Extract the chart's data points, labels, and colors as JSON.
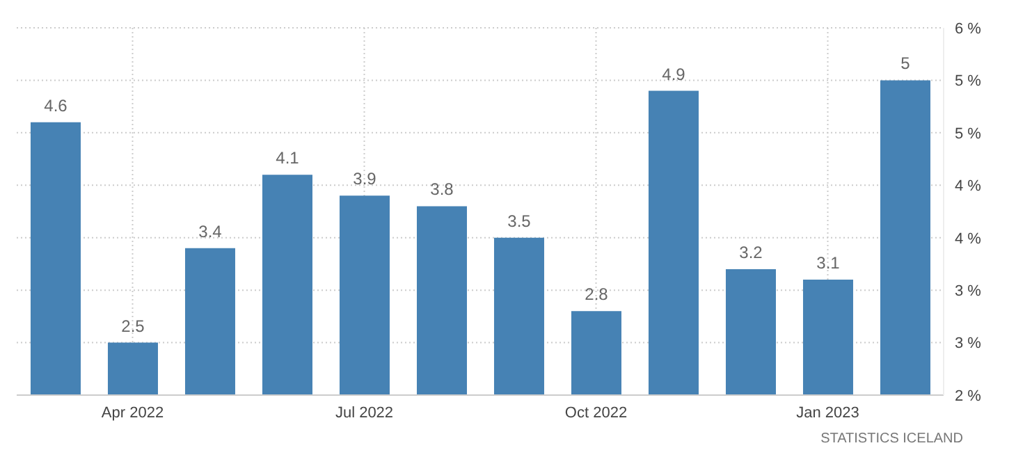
{
  "chart_data": {
    "type": "bar",
    "categories": [
      null,
      "Apr 2022",
      null,
      null,
      "Jul 2022",
      null,
      null,
      "Oct 2022",
      null,
      null,
      "Jan 2023",
      null
    ],
    "values": [
      4.6,
      2.5,
      3.4,
      4.1,
      3.9,
      3.8,
      3.5,
      2.8,
      4.9,
      3.2,
      3.1,
      5
    ],
    "color": "#4682b4",
    "data_labels": true,
    "ylim": [
      2,
      5.5
    ],
    "yticks": [
      {
        "value": 2,
        "label": "2 %"
      },
      {
        "value": 2.5,
        "label": "3 %"
      },
      {
        "value": 3,
        "label": "3 %"
      },
      {
        "value": 3.5,
        "label": "4 %"
      },
      {
        "value": 4,
        "label": "4 %"
      },
      {
        "value": 4.5,
        "label": "5 %"
      },
      {
        "value": 5,
        "label": "5 %"
      },
      {
        "value": 5.5,
        "label": "6 %"
      }
    ],
    "grid": true,
    "annotations": [
      "STATISTICS ICELAND"
    ]
  }
}
